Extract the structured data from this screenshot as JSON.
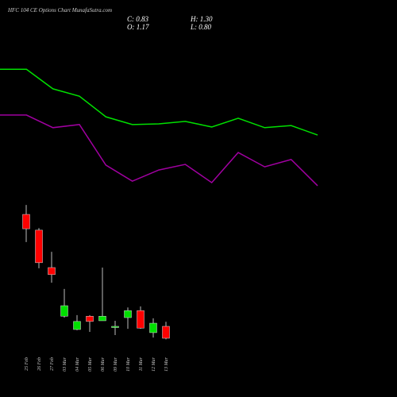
{
  "chart_data": [
    {
      "type": "line",
      "ylim": [
        -0.85,
        10.5
      ],
      "series": [
        {
          "color": "#00e000",
          "values": [
            8.52,
            8.52,
            7.96,
            7.75,
            7.16,
            6.94,
            6.96,
            7.03,
            6.87,
            7.12,
            6.85,
            6.91,
            6.64
          ]
        },
        {
          "color": "#a000a0",
          "values": [
            7.21,
            7.21,
            6.85,
            6.94,
            5.78,
            5.32,
            5.64,
            5.8,
            5.28,
            6.14,
            5.73,
            5.94,
            5.19
          ]
        }
      ]
    },
    {
      "type": "candlestick",
      "title": "HFC 104 CE Options Chart MunafaSutra.com",
      "ohlc_labels": {
        "C": "C: 0.83",
        "O": "O: 1.17",
        "H": "H: 1.30",
        "L": "L: 0.80"
      },
      "ylim": [
        -0.85,
        10.5
      ],
      "up_color": "#00e000",
      "down_color": "#ff0000",
      "categories": [
        "25 Feb",
        "26 Feb",
        "27 Feb",
        "03 Mar",
        "04 Mar",
        "05 Mar",
        "06 Mar",
        "09 Mar",
        "10 Mar",
        "11 Mar",
        "12 Mar",
        "13 Mar"
      ],
      "open": [
        4.37,
        3.92,
        2.85,
        1.46,
        1.08,
        1.46,
        1.33,
        1.15,
        1.42,
        1.62,
        0.99,
        1.17
      ],
      "high": [
        4.64,
        3.98,
        3.3,
        2.24,
        1.49,
        1.49,
        2.85,
        1.33,
        1.71,
        1.74,
        1.4,
        1.3
      ],
      "low": [
        3.58,
        2.83,
        2.42,
        1.42,
        1.06,
        1.01,
        1.33,
        0.92,
        1.1,
        1.1,
        0.85,
        0.8
      ],
      "close": [
        3.96,
        2.99,
        2.65,
        1.76,
        1.31,
        1.31,
        1.46,
        1.17,
        1.62,
        1.12,
        1.26,
        0.83
      ]
    }
  ]
}
